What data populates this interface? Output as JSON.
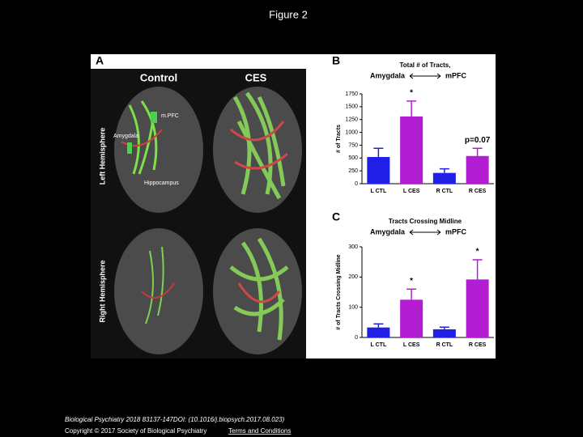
{
  "header": {
    "title": "Figure 2"
  },
  "panel_a": {
    "label": "A",
    "columns": [
      "Control",
      "CES"
    ],
    "rows": [
      "Left Hemisphere",
      "Right Hemisphere"
    ],
    "annotations": [
      "m.PFC",
      "Amygdala",
      "Hippocampus"
    ]
  },
  "chart_data": [
    {
      "type": "bar",
      "panel_label": "B",
      "title": "Total # of Tracts,",
      "subtitle_left": "Amygdala",
      "subtitle_right": "mPFC",
      "y_label": "# of Tracts",
      "categories": [
        "L CTL",
        "L CES",
        "R CTL",
        "R CES"
      ],
      "values": [
        520,
        1310,
        210,
        540
      ],
      "errors": [
        170,
        300,
        80,
        150
      ],
      "colors": [
        "#1f1fe6",
        "#b41ed2",
        "#1f1fe6",
        "#b41ed2"
      ],
      "ylim": [
        0,
        1750
      ],
      "yticks": [
        0,
        250,
        500,
        750,
        1000,
        1250,
        1500,
        1750
      ],
      "annotations": [
        "*",
        "p=0.07"
      ]
    },
    {
      "type": "bar",
      "panel_label": "C",
      "title": "Tracts Crossing Midline",
      "subtitle_left": "Amygdala",
      "subtitle_right": "mPFC",
      "y_label": "# of Tracts Crossing Midline",
      "categories": [
        "L CTL",
        "L CES",
        "R CTL",
        "R CES"
      ],
      "values": [
        33,
        125,
        27,
        192
      ],
      "errors": [
        12,
        35,
        7,
        65
      ],
      "colors": [
        "#1f1fe6",
        "#b41ed2",
        "#1f1fe6",
        "#b41ed2"
      ],
      "ylim": [
        0,
        300
      ],
      "yticks": [
        0,
        100,
        200,
        300
      ],
      "annotations": [
        "*",
        "*"
      ]
    }
  ],
  "footer": {
    "citation": "Biological Psychiatry 2018 83137-147DOI: (10.1016/j.biopsych.2017.08.023)",
    "copyright": "Copyright © 2017 Society of Biological Psychiatry",
    "link": "Terms and Conditions"
  }
}
